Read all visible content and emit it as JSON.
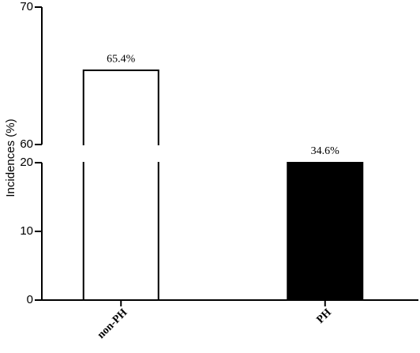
{
  "chart_data": {
    "type": "bar",
    "y_label": "Incidences (%)",
    "categories": [
      "non-PH",
      "PH"
    ],
    "values": [
      65.4,
      34.6
    ],
    "value_labels": [
      "65.4%",
      "34.6%"
    ],
    "colors": [
      "#ffffff",
      "#000000"
    ],
    "ylim": [
      0,
      70
    ],
    "axis_break": [
      20,
      60
    ],
    "yticks": [
      0,
      10,
      20,
      60,
      70
    ]
  }
}
